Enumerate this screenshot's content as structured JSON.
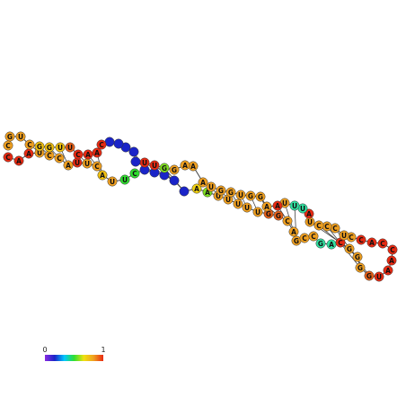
{
  "structure": {
    "nucleotides": [
      {
        "base": "C",
        "color": "#e82a12"
      },
      {
        "base": "A",
        "color": "#e82a12"
      },
      {
        "base": "A",
        "color": "#e82a12"
      },
      {
        "base": "U",
        "color": "#f0a020"
      },
      {
        "base": "C",
        "color": "#f0a020"
      },
      {
        "base": "C",
        "color": "#f0a020"
      },
      {
        "base": "A",
        "color": "#f0a020"
      },
      {
        "base": "U",
        "color": "#e82a12"
      },
      {
        "base": "U",
        "color": "#f0a020"
      },
      {
        "base": "C",
        "color": "#f0a020"
      },
      {
        "base": "A",
        "color": "#f0c010"
      },
      {
        "base": "U",
        "color": "#f0a020"
      },
      {
        "base": "U",
        "color": "#30e030"
      },
      {
        "base": "C",
        "color": "#30e030"
      },
      {
        "base": "",
        "color": "#1a24c8"
      },
      {
        "base": "",
        "color": "#1a24c8"
      },
      {
        "base": "",
        "color": "#1a24c8"
      },
      {
        "base": "",
        "color": "#1a24c8"
      },
      {
        "base": "",
        "color": "#1a24c8"
      },
      {
        "base": "A",
        "color": "#f0d010"
      },
      {
        "base": "A",
        "color": "#80e020"
      },
      {
        "base": "U",
        "color": "#f0a020"
      },
      {
        "base": "U",
        "color": "#f0a020"
      },
      {
        "base": "U",
        "color": "#f0a020"
      },
      {
        "base": "U",
        "color": "#f0a020"
      },
      {
        "base": "U",
        "color": "#f0a020"
      },
      {
        "base": "G",
        "color": "#e86018"
      },
      {
        "base": "G",
        "color": "#e86018"
      },
      {
        "base": "C",
        "color": "#f0a020"
      },
      {
        "base": "A",
        "color": "#f0a020"
      },
      {
        "base": "G",
        "color": "#f0a020"
      },
      {
        "base": "C",
        "color": "#f0a020"
      },
      {
        "base": "C",
        "color": "#f0a020"
      },
      {
        "base": "G",
        "color": "#30e0a0"
      },
      {
        "base": "A",
        "color": "#30e0a0"
      },
      {
        "base": "C",
        "color": "#e82a12"
      },
      {
        "base": "G",
        "color": "#f0a020"
      },
      {
        "base": "G",
        "color": "#f0a020"
      },
      {
        "base": "G",
        "color": "#f0a020"
      },
      {
        "base": "G",
        "color": "#e86018"
      },
      {
        "base": "U",
        "color": "#e82a12"
      },
      {
        "base": "A",
        "color": "#e82a12"
      },
      {
        "base": "A",
        "color": "#e82a12"
      },
      {
        "base": "C",
        "color": "#e82a12"
      },
      {
        "base": "C",
        "color": "#e82a12"
      },
      {
        "base": "A",
        "color": "#e82a12"
      },
      {
        "base": "C",
        "color": "#e82a12"
      },
      {
        "base": "C",
        "color": "#f0a020"
      },
      {
        "base": "U",
        "color": "#f0a020"
      },
      {
        "base": "C",
        "color": "#f0a020"
      },
      {
        "base": "C",
        "color": "#f0a020"
      },
      {
        "base": "C",
        "color": "#f0a020"
      },
      {
        "base": "U",
        "color": "#f0a020"
      },
      {
        "base": "A",
        "color": "#e82a12"
      },
      {
        "base": "U",
        "color": "#30e0a0"
      },
      {
        "base": "U",
        "color": "#30e0a0"
      },
      {
        "base": "U",
        "color": "#f0a020"
      },
      {
        "base": "A",
        "color": "#e82a12"
      },
      {
        "base": "A",
        "color": "#f0a020"
      },
      {
        "base": "G",
        "color": "#f0a020"
      },
      {
        "base": "G",
        "color": "#f0a020"
      },
      {
        "base": "U",
        "color": "#f0a020"
      },
      {
        "base": "G",
        "color": "#f0a020"
      },
      {
        "base": "G",
        "color": "#f0a020"
      },
      {
        "base": "U",
        "color": "#f0a020"
      },
      {
        "base": "A",
        "color": "#f0a020"
      },
      {
        "base": "A",
        "color": "#f0a020"
      },
      {
        "base": "A",
        "color": "#f0a020"
      },
      {
        "base": "G",
        "color": "#f0a020"
      },
      {
        "base": "G",
        "color": "#80e020"
      },
      {
        "base": "U",
        "color": "#e82a12"
      },
      {
        "base": "U",
        "color": "#e82a12"
      },
      {
        "base": "",
        "color": "#1a24c8"
      },
      {
        "base": "",
        "color": "#1a24c8"
      },
      {
        "base": "",
        "color": "#1a24c8"
      },
      {
        "base": "",
        "color": "#1a24c8"
      },
      {
        "base": "",
        "color": "#1a24c8"
      },
      {
        "base": "C",
        "color": "#e82a12"
      },
      {
        "base": "A",
        "color": "#e82a12"
      },
      {
        "base": "A",
        "color": "#e82a12"
      },
      {
        "base": "C",
        "color": "#e82a12"
      },
      {
        "base": "U",
        "color": "#e86018"
      },
      {
        "base": "U",
        "color": "#f0c010"
      },
      {
        "base": "G",
        "color": "#f0c010"
      },
      {
        "base": "G",
        "color": "#f0c010"
      },
      {
        "base": "C",
        "color": "#f0a020"
      },
      {
        "base": "U",
        "color": "#f0a020"
      },
      {
        "base": "G",
        "color": "#f0a020"
      },
      {
        "base": "C",
        "color": "#f0a020"
      },
      {
        "base": "G",
        "color": "#f0a020"
      },
      {
        "base": "A",
        "color": "#f0a020"
      },
      {
        "base": "U",
        "color": "#e82a12"
      },
      {
        "base": "U",
        "color": "#e82a12"
      },
      {
        "base": "C",
        "color": "#e82a12"
      }
    ],
    "colors": {
      "backbone": "#444444",
      "pair_line": "#444444"
    }
  },
  "color_scale": {
    "min_label": "0",
    "max_label": "1",
    "gradient_stops": [
      "#8a2be2",
      "#1a24c8",
      "#00c8ff",
      "#30e030",
      "#f0e010",
      "#f0a020",
      "#e82a12"
    ]
  }
}
